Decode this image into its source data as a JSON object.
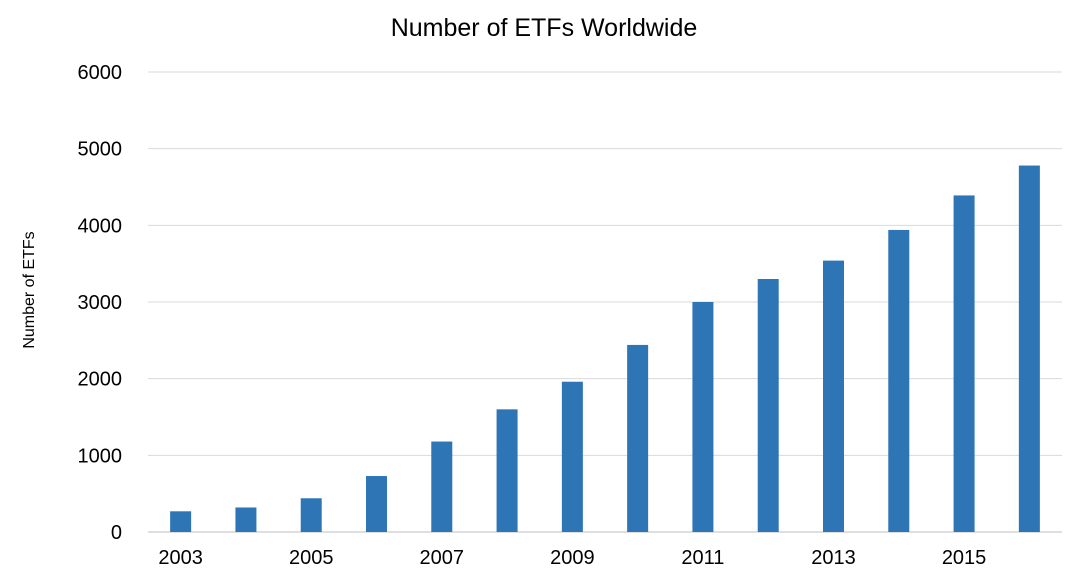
{
  "chart_data": {
    "type": "bar",
    "title": "Number of ETFs Worldwide",
    "xlabel": "",
    "ylabel": "Number of ETFs",
    "categories": [
      "2003",
      "2004",
      "2005",
      "2006",
      "2007",
      "2008",
      "2009",
      "2010",
      "2011",
      "2012",
      "2013",
      "2014",
      "2015",
      "2016"
    ],
    "x_tick_labels": [
      "2003",
      "",
      "2005",
      "",
      "2007",
      "",
      "2009",
      "",
      "2011",
      "",
      "2013",
      "",
      "2015",
      ""
    ],
    "values": [
      270,
      320,
      440,
      730,
      1180,
      1600,
      1960,
      2440,
      3000,
      3300,
      3540,
      3940,
      4390,
      4780
    ],
    "ylim": [
      0,
      6000
    ],
    "y_ticks": [
      0,
      1000,
      2000,
      3000,
      4000,
      5000,
      6000
    ],
    "grid": true,
    "legend": "none",
    "bar_color": "#2E75B6",
    "grid_color": "#D9D9D9"
  }
}
